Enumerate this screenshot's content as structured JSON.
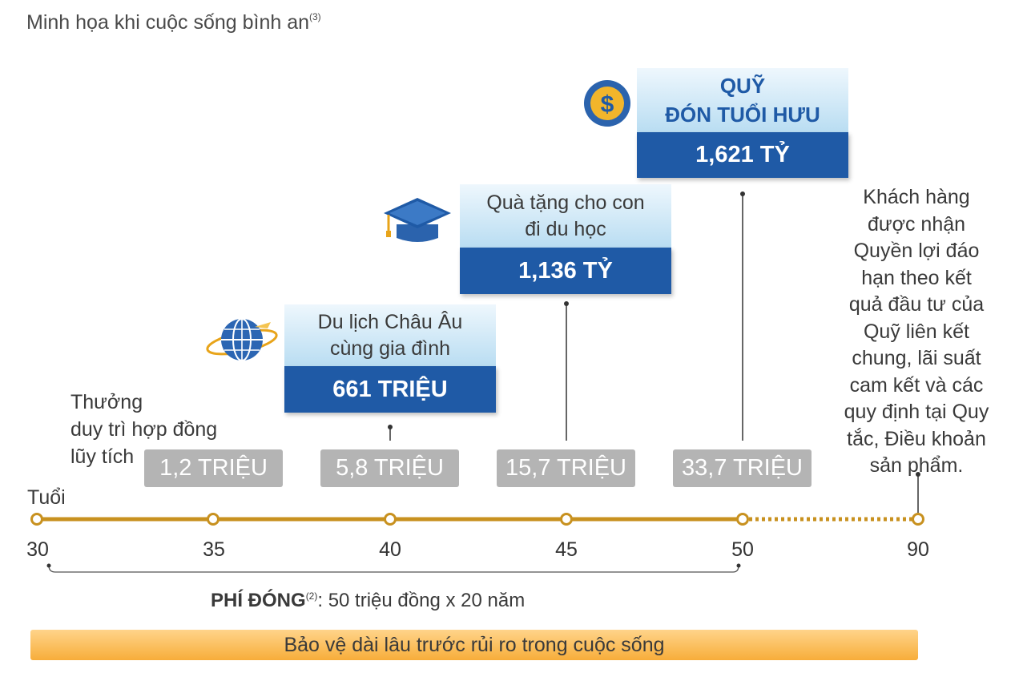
{
  "title": "Minh họa khi cuộc sống bình an",
  "title_note": "(3)",
  "bonus_label": [
    "Thưởng",
    "duy trì hợp đồng",
    "lũy tích"
  ],
  "axis_label": "Tuổi",
  "ages": [
    "30",
    "35",
    "40",
    "45",
    "50",
    "90"
  ],
  "bonuses": [
    "1,2 TRIỆU",
    "5,8 TRIỆU",
    "15,7 TRIỆU",
    "33,7 TRIỆU"
  ],
  "cards": {
    "travel": {
      "lines": [
        "Du lịch Châu Âu",
        "cùng gia đình"
      ],
      "value": "661 TRIỆU",
      "icon": "globe-airplane-icon"
    },
    "study": {
      "lines": [
        "Quà tặng cho con",
        "đi du học"
      ],
      "value": "1,136 TỶ",
      "icon": "graduation-cap-icon"
    },
    "retire": {
      "lines": [
        "QUỸ",
        "ĐÓN TUỔI HƯU"
      ],
      "value": "1,621 TỶ",
      "icon": "dollar-coin-icon"
    }
  },
  "maturity_note": [
    "Khách hàng",
    "được nhận",
    "Quyền lợi đáo",
    "hạn theo kết",
    "quả đầu tư của",
    "Quỹ liên kết",
    "chung, lãi suất",
    "cam kết và các",
    "quy định tại Quy",
    "tắc, Điều khoản",
    "sản phẩm."
  ],
  "fee": {
    "label": "PHÍ ĐÓNG",
    "note": "(2)",
    "text": ": 50 triệu đồng x 20 năm"
  },
  "banner": "Bảo vệ dài lâu trước rủi ro trong cuộc sống",
  "colors": {
    "timeline": "#c8911f",
    "card_blue": "#1f5aa6",
    "bonus_gray": "#b4b4b4",
    "banner": "#f7ad3a"
  }
}
